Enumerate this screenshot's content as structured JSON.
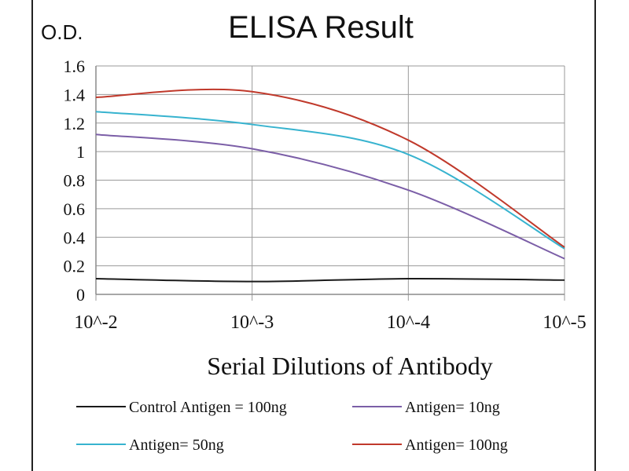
{
  "chart_data": {
    "type": "line",
    "title": "ELISA Result",
    "ylabel": "O.D.",
    "xlabel": "Serial Dilutions of Antibody",
    "x_ticks": [
      "10^-2",
      "10^-3",
      "10^-4",
      "10^-5"
    ],
    "y_ticks": [
      "0",
      "0.2",
      "0.4",
      "0.6",
      "0.8",
      "1",
      "1.2",
      "1.4",
      "1.6"
    ],
    "ylim": [
      0,
      1.6
    ],
    "grid": true,
    "legend_position": "bottom",
    "series": [
      {
        "name": "Control Antigen = 100ng",
        "color": "#1a1a1a",
        "x": [
          "10^-2",
          "10^-3",
          "10^-4",
          "10^-5"
        ],
        "values": [
          0.11,
          0.09,
          0.11,
          0.1
        ]
      },
      {
        "name": "Antigen= 10ng",
        "color": "#7b5ea7",
        "x": [
          "10^-2",
          "10^-3",
          "10^-4",
          "10^-5"
        ],
        "values": [
          1.12,
          1.02,
          0.73,
          0.25
        ]
      },
      {
        "name": "Antigen= 50ng",
        "color": "#37b3cf",
        "x": [
          "10^-2",
          "10^-3",
          "10^-4",
          "10^-5"
        ],
        "values": [
          1.28,
          1.19,
          0.98,
          0.32
        ]
      },
      {
        "name": "Antigen= 100ng",
        "color": "#c0392b",
        "x": [
          "10^-2",
          "10^-3",
          "10^-4",
          "10^-5"
        ],
        "values": [
          1.38,
          1.42,
          1.08,
          0.33
        ]
      }
    ]
  }
}
